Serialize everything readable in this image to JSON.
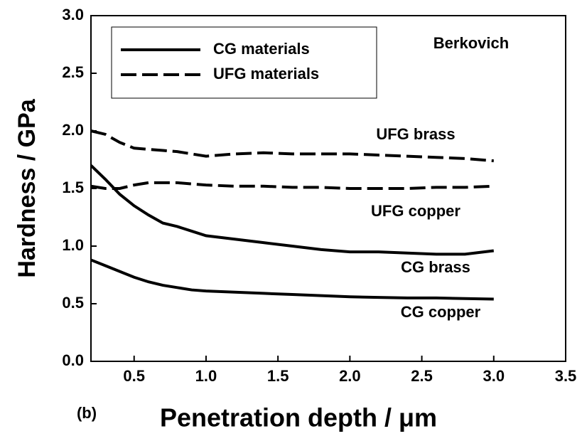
{
  "chart_data": {
    "type": "line",
    "xlabel": "Penetration depth / μm",
    "ylabel": "Hardness / GPa",
    "annotations": [
      "Berkovich",
      "(b)"
    ],
    "legend": [
      {
        "label": "CG materials",
        "style": "solid"
      },
      {
        "label": "UFG materials",
        "style": "dashed"
      }
    ],
    "legend_position": "upper left",
    "xlim": [
      0.2,
      3.5
    ],
    "ylim": [
      0,
      3
    ],
    "xticks": [
      0.5,
      {
        "value": 1,
        "label": "1.0"
      },
      1.5,
      {
        "value": 2,
        "label": "2.0"
      },
      2.5,
      {
        "value": 3,
        "label": "3.0"
      },
      3.5
    ],
    "yticks": [
      {
        "value": 0,
        "label": "0.0"
      },
      0.5,
      {
        "value": 1,
        "label": "1.0"
      },
      1.5,
      {
        "value": 2,
        "label": "2.0"
      },
      2.5,
      {
        "value": 3,
        "label": "3.0"
      }
    ],
    "x": [
      0.2,
      0.3,
      0.4,
      0.5,
      0.6,
      0.7,
      0.8,
      0.9,
      1.0,
      1.2,
      1.4,
      1.6,
      1.8,
      2.0,
      2.2,
      2.4,
      2.6,
      2.8,
      3.0
    ],
    "series": [
      {
        "name": "UFG brass",
        "color": "#000000",
        "style": "dashed",
        "values": [
          2.0,
          1.97,
          1.9,
          1.85,
          1.84,
          1.83,
          1.82,
          1.8,
          1.78,
          1.8,
          1.81,
          1.8,
          1.8,
          1.8,
          1.79,
          1.78,
          1.77,
          1.76,
          1.74
        ]
      },
      {
        "name": "UFG copper",
        "color": "#000000",
        "style": "dashed",
        "values": [
          1.52,
          1.5,
          1.5,
          1.53,
          1.55,
          1.55,
          1.55,
          1.54,
          1.53,
          1.52,
          1.52,
          1.51,
          1.51,
          1.5,
          1.5,
          1.5,
          1.51,
          1.51,
          1.52
        ]
      },
      {
        "name": "CG brass",
        "color": "#000000",
        "style": "solid",
        "values": [
          1.7,
          1.58,
          1.45,
          1.35,
          1.27,
          1.2,
          1.17,
          1.13,
          1.09,
          1.06,
          1.03,
          1.0,
          0.97,
          0.95,
          0.95,
          0.94,
          0.93,
          0.93,
          0.96
        ]
      },
      {
        "name": "CG copper",
        "color": "#000000",
        "style": "solid",
        "values": [
          0.88,
          0.83,
          0.78,
          0.73,
          0.69,
          0.66,
          0.64,
          0.62,
          0.61,
          0.6,
          0.59,
          0.58,
          0.57,
          0.56,
          0.555,
          0.55,
          0.55,
          0.545,
          0.54
        ]
      }
    ]
  }
}
